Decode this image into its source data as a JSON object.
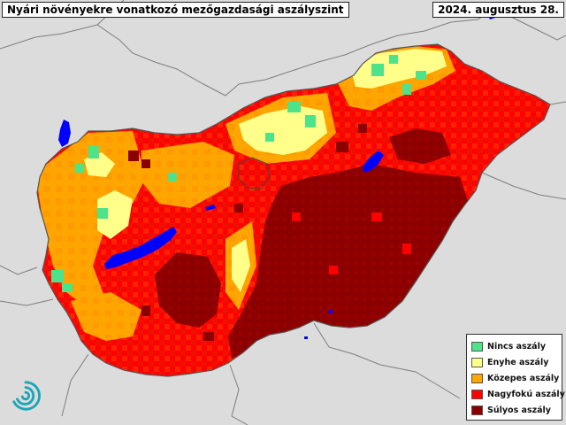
{
  "map": {
    "title": "Nyári növényekre vonatkozó mezőgazdasági aszályszint",
    "date": "2024. augusztus 28."
  },
  "legend": {
    "items": [
      {
        "label": "Nincs aszály",
        "color": "#4de38a"
      },
      {
        "label": "Enyhe aszály",
        "color": "#ffff8a"
      },
      {
        "label": "Közepes aszály",
        "color": "#ffa500"
      },
      {
        "label": "Nagyfokú aszály",
        "color": "#ff0000"
      },
      {
        "label": "Súlyos aszály",
        "color": "#8b0000"
      }
    ]
  },
  "colors": {
    "background": "#dcdcdc",
    "water": "#0000ff",
    "border": "#555555"
  }
}
